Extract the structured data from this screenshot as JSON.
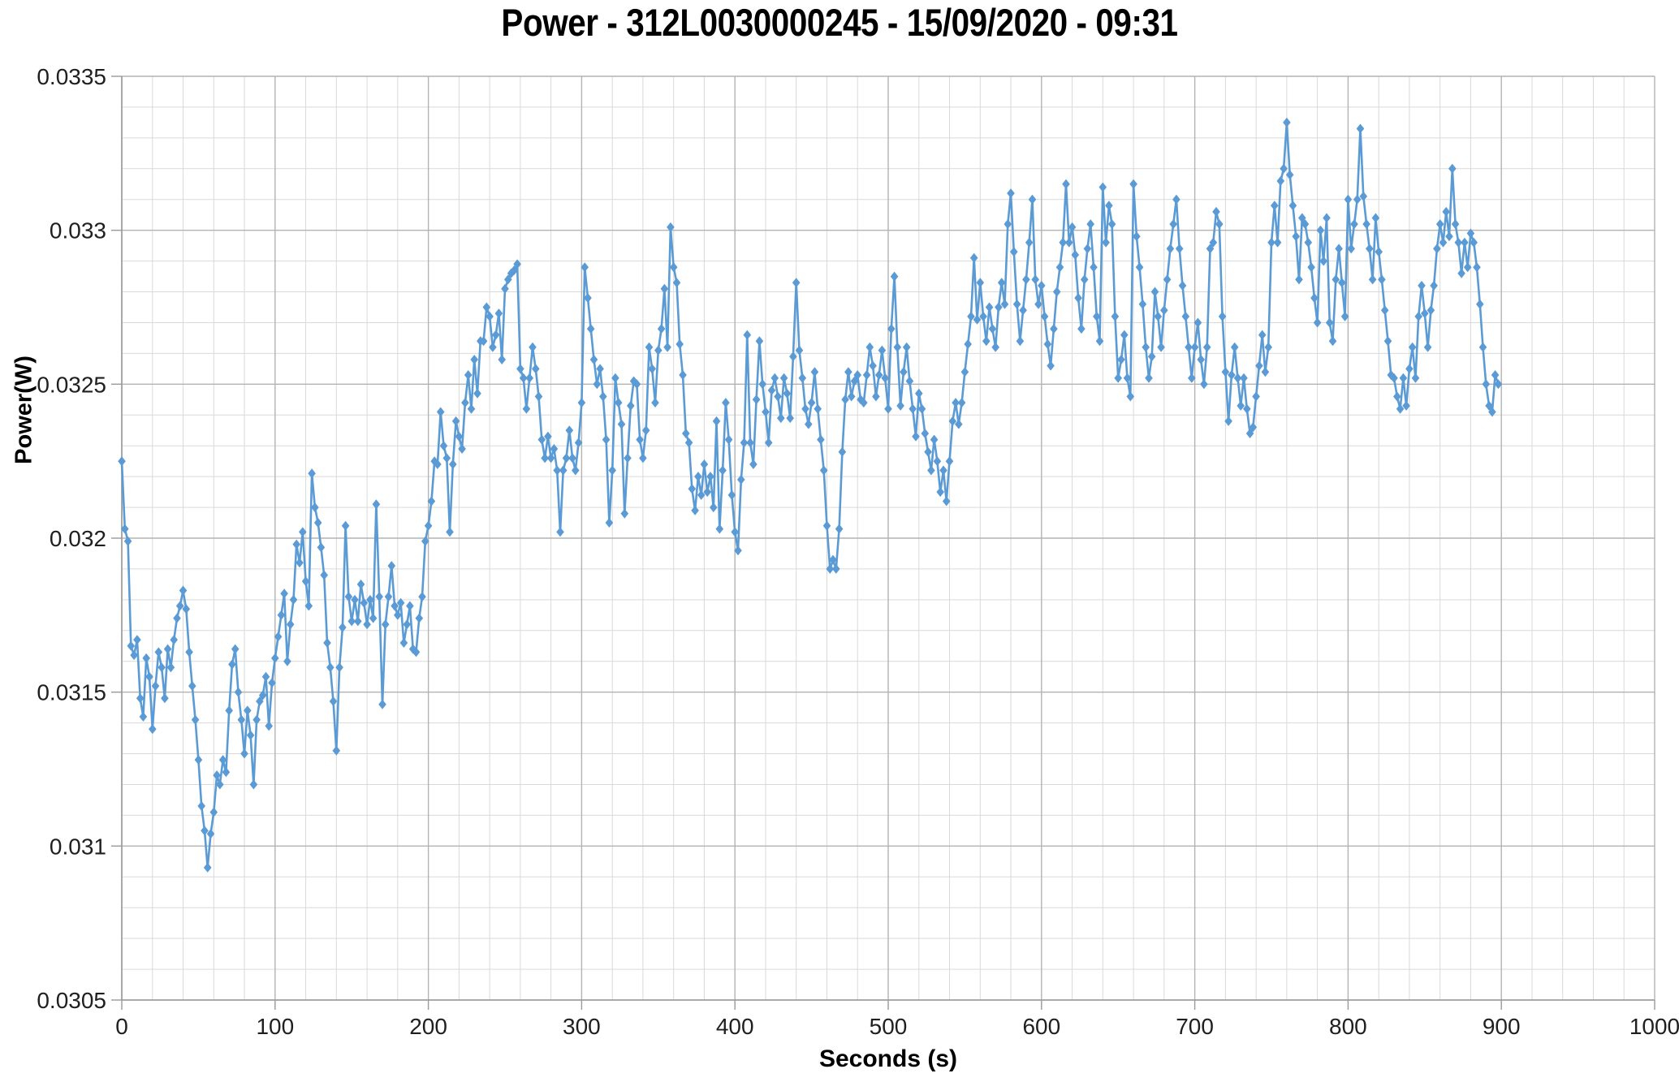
{
  "chart_data": {
    "type": "line",
    "title": "Power - 312L0030000245 - 15/09/2020 - 09:31",
    "xlabel": "Seconds (s)",
    "ylabel": "Power(W)",
    "xlim": [
      0,
      1000
    ],
    "ylim": [
      0.0305,
      0.0335
    ],
    "x_tick_step": 100,
    "x_minor_step": 20,
    "y_tick_step": 0.0005,
    "y_minor_step": 0.0001,
    "x_tick_labels": [
      "0",
      "100",
      "200",
      "300",
      "400",
      "500",
      "600",
      "700",
      "800",
      "900",
      "1000"
    ],
    "y_tick_labels": [
      "0.0335",
      "0.033",
      "0.0325",
      "0.032",
      "0.0315",
      "0.031",
      "0.0305"
    ],
    "grid": true,
    "legend_position": "none",
    "series": [
      {
        "marker": "diamond",
        "color": "#5B9BD5",
        "x_start": 0,
        "x_step": 2,
        "values": [
          0.03225,
          0.03203,
          0.03199,
          0.03165,
          0.03162,
          0.03167,
          0.03148,
          0.03142,
          0.03161,
          0.03155,
          0.03138,
          0.03152,
          0.03163,
          0.03158,
          0.03148,
          0.03164,
          0.03158,
          0.03167,
          0.03174,
          0.03178,
          0.03183,
          0.03177,
          0.03163,
          0.03152,
          0.03141,
          0.03128,
          0.03113,
          0.03105,
          0.03093,
          0.03104,
          0.03111,
          0.03123,
          0.0312,
          0.03128,
          0.03124,
          0.03144,
          0.03159,
          0.03164,
          0.0315,
          0.03141,
          0.0313,
          0.03144,
          0.03136,
          0.0312,
          0.03141,
          0.03147,
          0.03149,
          0.03155,
          0.03139,
          0.03153,
          0.03161,
          0.03168,
          0.03175,
          0.03182,
          0.0316,
          0.03172,
          0.0318,
          0.03198,
          0.03192,
          0.03202,
          0.03186,
          0.03178,
          0.03221,
          0.0321,
          0.03205,
          0.03197,
          0.03188,
          0.03166,
          0.03158,
          0.03147,
          0.03131,
          0.03158,
          0.03171,
          0.03204,
          0.03181,
          0.03173,
          0.0318,
          0.03173,
          0.03185,
          0.03179,
          0.03172,
          0.0318,
          0.03174,
          0.03211,
          0.03181,
          0.03146,
          0.03172,
          0.03181,
          0.03191,
          0.03178,
          0.03175,
          0.03179,
          0.03166,
          0.03172,
          0.03178,
          0.03164,
          0.03163,
          0.03174,
          0.03181,
          0.03199,
          0.03204,
          0.03212,
          0.03225,
          0.03224,
          0.03241,
          0.0323,
          0.03226,
          0.03202,
          0.03224,
          0.03238,
          0.03233,
          0.03229,
          0.03244,
          0.03253,
          0.03242,
          0.03258,
          0.03247,
          0.03264,
          0.03264,
          0.03275,
          0.03272,
          0.03262,
          0.03266,
          0.03273,
          0.03258,
          0.03281,
          0.03284,
          0.03286,
          0.03287,
          0.03289,
          0.03255,
          0.03252,
          0.03242,
          0.03252,
          0.03262,
          0.03255,
          0.03246,
          0.03232,
          0.03226,
          0.03233,
          0.03226,
          0.03229,
          0.03222,
          0.03202,
          0.03222,
          0.03226,
          0.03235,
          0.03226,
          0.03222,
          0.03231,
          0.03244,
          0.03288,
          0.03278,
          0.03268,
          0.03258,
          0.0325,
          0.03255,
          0.03246,
          0.03232,
          0.03205,
          0.03222,
          0.03252,
          0.03244,
          0.03237,
          0.03208,
          0.03226,
          0.03243,
          0.03251,
          0.0325,
          0.03232,
          0.03226,
          0.03235,
          0.03262,
          0.03255,
          0.03244,
          0.03261,
          0.03268,
          0.03281,
          0.03262,
          0.03301,
          0.03288,
          0.03283,
          0.03263,
          0.03253,
          0.03234,
          0.03231,
          0.03216,
          0.03209,
          0.0322,
          0.03214,
          0.03224,
          0.03215,
          0.0322,
          0.0321,
          0.03238,
          0.03203,
          0.03222,
          0.03244,
          0.03232,
          0.03214,
          0.03202,
          0.03196,
          0.03219,
          0.03231,
          0.03266,
          0.03231,
          0.03224,
          0.03245,
          0.03264,
          0.0325,
          0.03241,
          0.03231,
          0.03248,
          0.03252,
          0.03246,
          0.03239,
          0.03252,
          0.03247,
          0.03239,
          0.03259,
          0.03283,
          0.03261,
          0.03252,
          0.03242,
          0.03237,
          0.03244,
          0.03254,
          0.03242,
          0.03232,
          0.03222,
          0.03204,
          0.0319,
          0.03193,
          0.0319,
          0.03203,
          0.03228,
          0.03245,
          0.03254,
          0.03246,
          0.03251,
          0.03253,
          0.03245,
          0.03244,
          0.03253,
          0.03262,
          0.03256,
          0.03246,
          0.03253,
          0.03261,
          0.03252,
          0.03242,
          0.03268,
          0.03285,
          0.03262,
          0.03243,
          0.03254,
          0.03262,
          0.03251,
          0.03242,
          0.03233,
          0.03247,
          0.03242,
          0.03234,
          0.03228,
          0.03222,
          0.03232,
          0.03225,
          0.03215,
          0.03222,
          0.03212,
          0.03225,
          0.03238,
          0.03244,
          0.03237,
          0.03244,
          0.03254,
          0.03263,
          0.03272,
          0.03291,
          0.03271,
          0.03283,
          0.03272,
          0.03264,
          0.03275,
          0.03268,
          0.03262,
          0.03275,
          0.03283,
          0.03276,
          0.03302,
          0.03312,
          0.03293,
          0.03276,
          0.03264,
          0.03274,
          0.03284,
          0.03296,
          0.0331,
          0.03284,
          0.03276,
          0.03282,
          0.03272,
          0.03263,
          0.03256,
          0.03268,
          0.0328,
          0.03288,
          0.03296,
          0.03315,
          0.03296,
          0.03301,
          0.03292,
          0.03278,
          0.03268,
          0.03284,
          0.03294,
          0.03302,
          0.03288,
          0.03272,
          0.03264,
          0.03314,
          0.03296,
          0.03308,
          0.03302,
          0.03272,
          0.03252,
          0.03258,
          0.03266,
          0.03252,
          0.03246,
          0.03315,
          0.03298,
          0.03288,
          0.03276,
          0.03262,
          0.03252,
          0.03259,
          0.0328,
          0.03272,
          0.03262,
          0.03274,
          0.03284,
          0.03294,
          0.03302,
          0.0331,
          0.03294,
          0.03282,
          0.03272,
          0.03262,
          0.03252,
          0.03262,
          0.0327,
          0.03258,
          0.0325,
          0.03262,
          0.03294,
          0.03296,
          0.03306,
          0.03302,
          0.03272,
          0.03254,
          0.03238,
          0.03253,
          0.03262,
          0.03252,
          0.03243,
          0.03252,
          0.03242,
          0.03234,
          0.03236,
          0.03246,
          0.03256,
          0.03266,
          0.03254,
          0.03262,
          0.03296,
          0.03308,
          0.03296,
          0.03316,
          0.0332,
          0.03335,
          0.03318,
          0.03308,
          0.03298,
          0.03284,
          0.03304,
          0.03302,
          0.03296,
          0.03288,
          0.03278,
          0.0327,
          0.033,
          0.0329,
          0.03304,
          0.0327,
          0.03264,
          0.03284,
          0.03294,
          0.03283,
          0.03272,
          0.0331,
          0.03294,
          0.03302,
          0.0331,
          0.03333,
          0.03311,
          0.03302,
          0.03294,
          0.03284,
          0.03304,
          0.03293,
          0.03284,
          0.03274,
          0.03264,
          0.03253,
          0.03252,
          0.03246,
          0.03242,
          0.03252,
          0.03243,
          0.03255,
          0.03262,
          0.03252,
          0.03272,
          0.03282,
          0.03273,
          0.03262,
          0.03274,
          0.03282,
          0.03294,
          0.03302,
          0.03296,
          0.03306,
          0.03298,
          0.0332,
          0.03302,
          0.03296,
          0.03286,
          0.03296,
          0.03288,
          0.03299,
          0.03296,
          0.03288,
          0.03276,
          0.03262,
          0.0325,
          0.03243,
          0.03241,
          0.03253,
          0.0325
        ]
      }
    ],
    "colors": {
      "series": "#5B9BD5",
      "grid_minor": "#D9D9D9",
      "grid_major": "#B3B3B3",
      "axis": "#9A9A9A",
      "tick_text": "#1f1f1f",
      "title_text": "#000000"
    }
  }
}
